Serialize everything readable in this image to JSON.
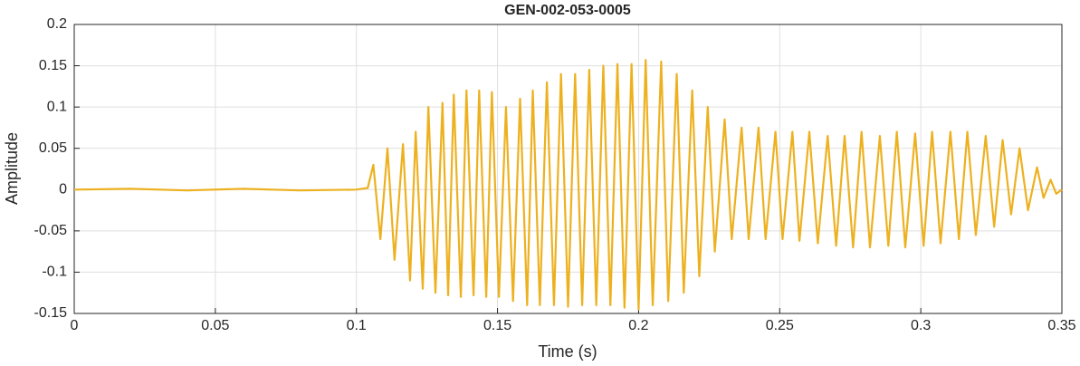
{
  "chart_data": {
    "type": "line",
    "title": "GEN-002-053-0005",
    "xlabel": "Time (s)",
    "ylabel": "Amplitude",
    "color": "#EDB120",
    "grid": true,
    "xlim": [
      0,
      0.35
    ],
    "xticks": [
      0,
      0.05,
      0.1,
      0.15,
      0.2,
      0.25,
      0.3,
      0.35
    ],
    "ylim": [
      -0.15,
      0.2
    ],
    "yticks": [
      -0.15,
      -0.1,
      -0.05,
      0,
      0.05,
      0.1,
      0.15,
      0.2
    ],
    "x": [
      0,
      0.02,
      0.04,
      0.06,
      0.08,
      0.1,
      0.104,
      0.106,
      0.1085,
      0.111,
      0.1135,
      0.1165,
      0.119,
      0.121,
      0.1235,
      0.1255,
      0.128,
      0.1305,
      0.1325,
      0.1345,
      0.137,
      0.139,
      0.1415,
      0.1435,
      0.146,
      0.148,
      0.1505,
      0.153,
      0.1555,
      0.158,
      0.1605,
      0.1625,
      0.165,
      0.1675,
      0.17,
      0.1725,
      0.175,
      0.1775,
      0.18,
      0.1825,
      0.185,
      0.1875,
      0.19,
      0.1925,
      0.195,
      0.1975,
      0.2,
      0.2025,
      0.205,
      0.208,
      0.2105,
      0.2135,
      0.216,
      0.219,
      0.2215,
      0.2245,
      0.227,
      0.2305,
      0.233,
      0.2365,
      0.239,
      0.2425,
      0.245,
      0.2485,
      0.251,
      0.2545,
      0.257,
      0.2605,
      0.2635,
      0.267,
      0.27,
      0.273,
      0.276,
      0.279,
      0.282,
      0.2855,
      0.2885,
      0.2915,
      0.2945,
      0.298,
      0.301,
      0.304,
      0.307,
      0.3105,
      0.3135,
      0.3165,
      0.3195,
      0.323,
      0.326,
      0.329,
      0.332,
      0.335,
      0.338,
      0.3412,
      0.3435,
      0.346,
      0.348,
      0.35
    ],
    "values": [
      0,
      0.001,
      -0.001,
      0.001,
      -0.001,
      0,
      0.002,
      0.03,
      -0.06,
      0.05,
      -0.085,
      0.055,
      -0.11,
      0.07,
      -0.12,
      0.1,
      -0.125,
      0.105,
      -0.128,
      0.115,
      -0.13,
      0.12,
      -0.128,
      0.12,
      -0.13,
      0.118,
      -0.13,
      0.1,
      -0.135,
      0.11,
      -0.14,
      0.12,
      -0.14,
      0.13,
      -0.14,
      0.14,
      -0.142,
      0.14,
      -0.14,
      0.145,
      -0.14,
      0.15,
      -0.14,
      0.152,
      -0.143,
      0.152,
      -0.145,
      0.157,
      -0.14,
      0.155,
      -0.135,
      0.14,
      -0.125,
      0.12,
      -0.105,
      0.1,
      -0.075,
      0.085,
      -0.06,
      0.075,
      -0.06,
      0.075,
      -0.06,
      0.07,
      -0.06,
      0.07,
      -0.062,
      0.07,
      -0.065,
      0.065,
      -0.068,
      0.065,
      -0.07,
      0.07,
      -0.07,
      0.065,
      -0.068,
      0.07,
      -0.07,
      0.068,
      -0.068,
      0.07,
      -0.065,
      0.07,
      -0.06,
      0.07,
      -0.055,
      0.065,
      -0.045,
      0.06,
      -0.03,
      0.05,
      -0.025,
      0.027,
      -0.01,
      0.012,
      -0.005,
      0
    ]
  }
}
